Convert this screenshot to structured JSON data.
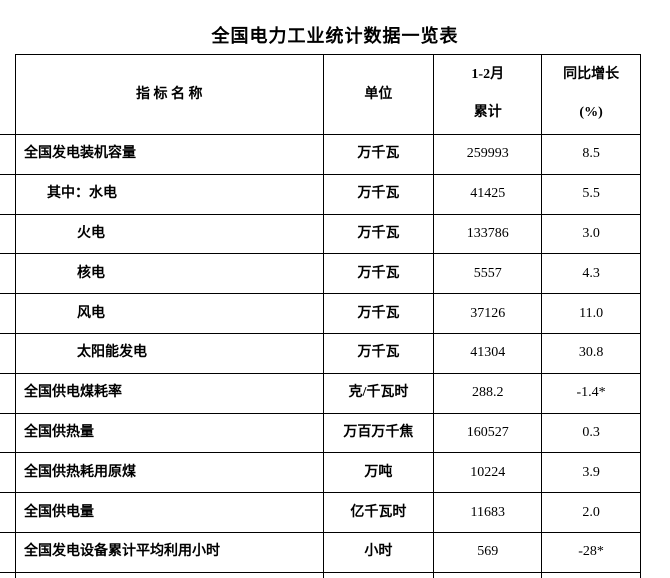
{
  "title": "全国电力工业统计数据一览表",
  "table": {
    "headers": {
      "indicator": "指 标 名 称",
      "unit": "单位",
      "period_line1": "1-2月",
      "period_line2": "累计",
      "growth_line1": "同比增长",
      "growth_line2": "(%)"
    },
    "rows": [
      {
        "indicator": "全国发电装机容量",
        "unit": "万千瓦",
        "value": "259993",
        "growth": "8.5",
        "indent": 0
      },
      {
        "indicator": "其中：水电",
        "unit": "万千瓦",
        "value": "41425",
        "growth": "5.5",
        "indent": 1
      },
      {
        "indicator": "火电",
        "unit": "万千瓦",
        "value": "133786",
        "growth": "3.0",
        "indent": 2
      },
      {
        "indicator": "核电",
        "unit": "万千瓦",
        "value": "5557",
        "growth": "4.3",
        "indent": 2
      },
      {
        "indicator": "风电",
        "unit": "万千瓦",
        "value": "37126",
        "growth": "11.0",
        "indent": 2
      },
      {
        "indicator": "太阳能发电",
        "unit": "万千瓦",
        "value": "41304",
        "growth": "30.8",
        "indent": 2
      },
      {
        "indicator": "全国供电煤耗率",
        "unit": "克/千瓦时",
        "value": "288.2",
        "growth": "-1.4*",
        "indent": 0
      },
      {
        "indicator": "全国供热量",
        "unit": "万百万千焦",
        "value": "160527",
        "growth": "0.3",
        "indent": 0
      },
      {
        "indicator": "全国供热耗用原煤",
        "unit": "万吨",
        "value": "10224",
        "growth": "3.9",
        "indent": 0
      },
      {
        "indicator": "全国供电量",
        "unit": "亿千瓦时",
        "value": "11683",
        "growth": "2.0",
        "indent": 0
      },
      {
        "indicator": "全国发电设备累计平均利用小时",
        "unit": "小时",
        "value": "569",
        "growth": "-28*",
        "indent": 0
      }
    ]
  }
}
